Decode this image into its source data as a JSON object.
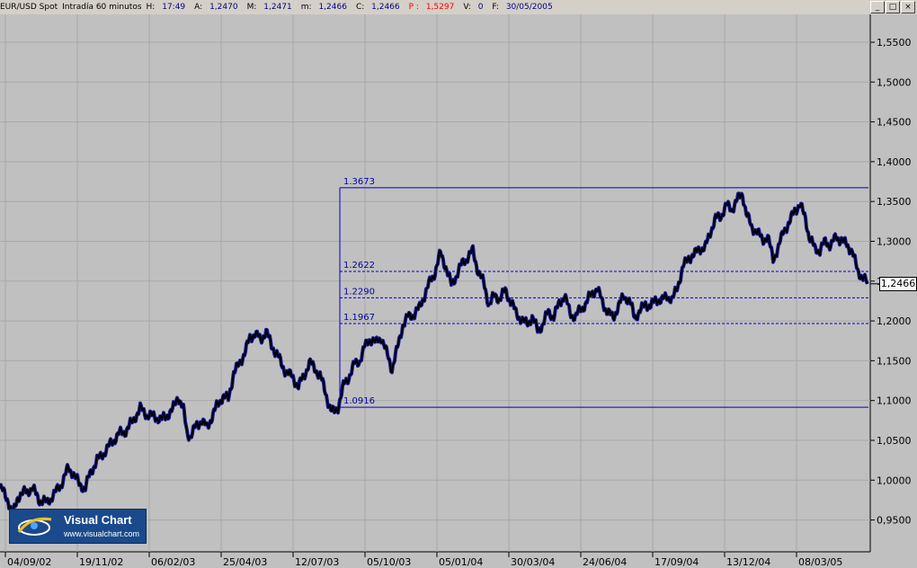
{
  "header": {
    "symbol": "EUR/USD Spot",
    "interval": "Intradía 60 minutos",
    "high_label": "H:",
    "high": "17:49",
    "open_label": "A:",
    "open": "1,2470",
    "max_label": "M:",
    "max": "1,2471",
    "min_label": "m:",
    "min": "1,2466",
    "close_label": "C:",
    "close": "1,2466",
    "p_label": "P :",
    "p": "1,5297",
    "v_label": "V:",
    "v": "0",
    "f_label": "F:",
    "f": "30/05/2005"
  },
  "window_buttons": [
    "_",
    "□",
    "×"
  ],
  "last_price": "1,2466",
  "logo": {
    "name": "Visual Chart",
    "url": "www.visualchart.com"
  },
  "colors": {
    "background": "#c0c0c0",
    "price_line": "#000000",
    "price_edge": "#1a1aa0",
    "levels": "#0000a0"
  },
  "chart_data": {
    "type": "line",
    "title": "",
    "series": [
      {
        "x": [
          "04/09/02",
          "19/11/02",
          "06/02/03",
          "25/04/03",
          "12/07/03",
          "05/10/03",
          "05/01/04",
          "30/03/04",
          "24/06/04",
          "17/09/04",
          "13/12/04",
          "08/03/05",
          "30/05/05"
        ],
        "values": [
          0.99,
          1.0,
          1.07,
          1.1,
          1.15,
          1.21,
          1.26,
          1.23,
          1.22,
          1.23,
          1.33,
          1.3,
          1.2466
        ],
        "detail": [
          [
            0,
            0.99
          ],
          [
            4,
            0.985
          ],
          [
            9,
            0.975
          ],
          [
            14,
            0.955
          ],
          [
            20,
            0.98
          ],
          [
            28,
            0.985
          ],
          [
            36,
            0.99
          ],
          [
            44,
            0.975
          ],
          [
            52,
            0.972
          ],
          [
            60,
            0.982
          ],
          [
            68,
            0.995
          ],
          [
            76,
            1.015
          ],
          [
            82,
            1.008
          ],
          [
            88,
            0.995
          ],
          [
            95,
            0.99
          ],
          [
            100,
            1.008
          ],
          [
            108,
            1.025
          ],
          [
            116,
            1.035
          ],
          [
            124,
            1.047
          ],
          [
            132,
            1.058
          ],
          [
            140,
            1.062
          ],
          [
            148,
            1.075
          ],
          [
            156,
            1.09
          ],
          [
            164,
            1.082
          ],
          [
            172,
            1.08
          ],
          [
            180,
            1.076
          ],
          [
            186,
            1.082
          ],
          [
            192,
            1.088
          ],
          [
            198,
            1.106
          ],
          [
            204,
            1.088
          ],
          [
            208,
            1.06
          ],
          [
            212,
            1.055
          ],
          [
            218,
            1.068
          ],
          [
            224,
            1.075
          ],
          [
            230,
            1.066
          ],
          [
            236,
            1.08
          ],
          [
            242,
            1.095
          ],
          [
            248,
            1.105
          ],
          [
            254,
            1.102
          ],
          [
            260,
            1.135
          ],
          [
            266,
            1.145
          ],
          [
            272,
            1.16
          ],
          [
            278,
            1.178
          ],
          [
            284,
            1.185
          ],
          [
            290,
            1.175
          ],
          [
            296,
            1.188
          ],
          [
            302,
            1.168
          ],
          [
            308,
            1.16
          ],
          [
            314,
            1.142
          ],
          [
            320,
            1.135
          ],
          [
            326,
            1.128
          ],
          [
            332,
            1.118
          ],
          [
            338,
            1.13
          ],
          [
            344,
            1.148
          ],
          [
            350,
            1.14
          ],
          [
            356,
            1.132
          ],
          [
            362,
            1.11
          ],
          [
            368,
            1.088
          ],
          [
            372,
            1.085
          ],
          [
            376,
            1.092
          ],
          [
            382,
            1.118
          ],
          [
            388,
            1.13
          ],
          [
            394,
            1.145
          ],
          [
            400,
            1.15
          ],
          [
            406,
            1.168
          ],
          [
            412,
            1.178
          ],
          [
            418,
            1.172
          ],
          [
            424,
            1.18
          ],
          [
            430,
            1.16
          ],
          [
            436,
            1.14
          ],
          [
            442,
            1.165
          ],
          [
            448,
            1.195
          ],
          [
            454,
            1.205
          ],
          [
            460,
            1.208
          ],
          [
            466,
            1.215
          ],
          [
            472,
            1.232
          ],
          [
            478,
            1.248
          ],
          [
            484,
            1.262
          ],
          [
            490,
            1.285
          ],
          [
            496,
            1.268
          ],
          [
            502,
            1.245
          ],
          [
            508,
            1.258
          ],
          [
            514,
            1.272
          ],
          [
            520,
            1.28
          ],
          [
            526,
            1.288
          ],
          [
            532,
            1.262
          ],
          [
            538,
            1.248
          ],
          [
            544,
            1.22
          ],
          [
            550,
            1.232
          ],
          [
            556,
            1.228
          ],
          [
            562,
            1.238
          ],
          [
            568,
            1.225
          ],
          [
            574,
            1.21
          ],
          [
            580,
            1.202
          ],
          [
            586,
            1.196
          ],
          [
            592,
            1.205
          ],
          [
            598,
            1.188
          ],
          [
            604,
            1.196
          ],
          [
            610,
            1.212
          ],
          [
            616,
            1.205
          ],
          [
            622,
            1.222
          ],
          [
            628,
            1.232
          ],
          [
            634,
            1.21
          ],
          [
            640,
            1.205
          ],
          [
            646,
            1.215
          ],
          [
            652,
            1.222
          ],
          [
            658,
            1.235
          ],
          [
            664,
            1.24
          ],
          [
            670,
            1.225
          ],
          [
            676,
            1.21
          ],
          [
            682,
            1.205
          ],
          [
            688,
            1.218
          ],
          [
            694,
            1.232
          ],
          [
            700,
            1.225
          ],
          [
            706,
            1.205
          ],
          [
            712,
            1.212
          ],
          [
            718,
            1.222
          ],
          [
            724,
            1.218
          ],
          [
            730,
            1.228
          ],
          [
            736,
            1.225
          ],
          [
            742,
            1.232
          ],
          [
            748,
            1.226
          ],
          [
            754,
            1.245
          ],
          [
            760,
            1.268
          ],
          [
            766,
            1.28
          ],
          [
            772,
            1.282
          ],
          [
            778,
            1.292
          ],
          [
            784,
            1.29
          ],
          [
            790,
            1.312
          ],
          [
            796,
            1.328
          ],
          [
            802,
            1.332
          ],
          [
            808,
            1.345
          ],
          [
            814,
            1.34
          ],
          [
            820,
            1.352
          ],
          [
            826,
            1.36
          ],
          [
            830,
            1.335
          ],
          [
            836,
            1.318
          ],
          [
            842,
            1.312
          ],
          [
            848,
            1.302
          ],
          [
            854,
            1.305
          ],
          [
            860,
            1.278
          ],
          [
            866,
            1.292
          ],
          [
            872,
            1.315
          ],
          [
            878,
            1.322
          ],
          [
            884,
            1.34
          ],
          [
            890,
            1.345
          ],
          [
            896,
            1.33
          ],
          [
            900,
            1.305
          ],
          [
            906,
            1.292
          ],
          [
            912,
            1.288
          ],
          [
            918,
            1.3
          ],
          [
            924,
            1.295
          ],
          [
            930,
            1.305
          ],
          [
            936,
            1.302
          ],
          [
            942,
            1.295
          ],
          [
            948,
            1.288
          ],
          [
            954,
            1.262
          ],
          [
            960,
            1.255
          ],
          [
            965,
            1.2466
          ]
        ]
      }
    ],
    "xlabel": "",
    "ylabel": "",
    "x_ticks": [
      "04/09/02",
      "19/11/02",
      "06/02/03",
      "25/04/03",
      "12/07/03",
      "05/10/03",
      "05/01/04",
      "30/03/04",
      "24/06/04",
      "17/09/04",
      "13/12/04",
      "08/03/05"
    ],
    "y_ticks": [
      "0,9500",
      "1,0000",
      "1,0500",
      "1,1000",
      "1,1500",
      "1,2000",
      "1,2500",
      "1,3000",
      "1,3500",
      "1,4000",
      "1,4500",
      "1,5000",
      "1,5500"
    ],
    "ylim": [
      0.91,
      1.585
    ],
    "fib_levels": [
      {
        "label": "1.3673",
        "value": 1.3673,
        "style": "solid"
      },
      {
        "label": "1.2622",
        "value": 1.2622,
        "style": "dashed"
      },
      {
        "label": "1.2290",
        "value": 1.229,
        "style": "dashed"
      },
      {
        "label": "1.1967",
        "value": 1.1967,
        "style": "dashed"
      },
      {
        "label": "1.0916",
        "value": 1.0916,
        "style": "solid"
      }
    ],
    "grid": true
  }
}
